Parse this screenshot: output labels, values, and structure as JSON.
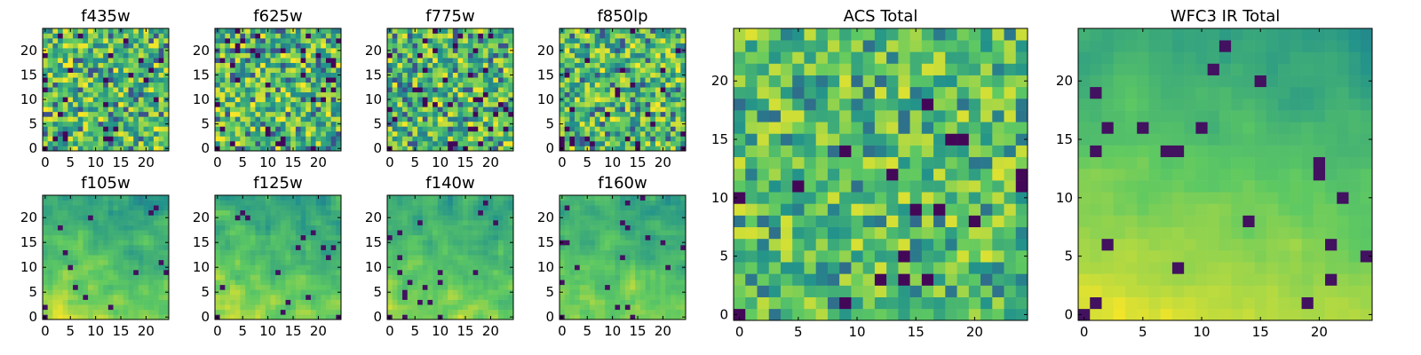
{
  "figure": {
    "colormap": "viridis",
    "colormap_stops": [
      "#440154",
      "#3b528b",
      "#21918c",
      "#5ec962",
      "#fde725"
    ]
  },
  "chart_data": [
    {
      "type": "heatmap",
      "title": "f435w",
      "grid_size": [
        25,
        25
      ],
      "xticks": [
        "0",
        "5",
        "10",
        "15",
        "20"
      ],
      "yticks": [
        "0",
        "5",
        "10",
        "15",
        "20"
      ],
      "xlim": [
        0,
        25
      ],
      "ylim": [
        0,
        25
      ],
      "grid": false,
      "texture": "uniform-noise",
      "seed": 11
    },
    {
      "type": "heatmap",
      "title": "f625w",
      "grid_size": [
        25,
        25
      ],
      "xticks": [
        "0",
        "5",
        "10",
        "15",
        "20"
      ],
      "yticks": [
        "0",
        "5",
        "10",
        "15",
        "20"
      ],
      "xlim": [
        0,
        25
      ],
      "ylim": [
        0,
        25
      ],
      "grid": false,
      "texture": "uniform-noise",
      "seed": 23
    },
    {
      "type": "heatmap",
      "title": "f775w",
      "grid_size": [
        25,
        25
      ],
      "xticks": [
        "0",
        "5",
        "10",
        "15",
        "20"
      ],
      "yticks": [
        "0",
        "5",
        "10",
        "15",
        "20"
      ],
      "xlim": [
        0,
        25
      ],
      "ylim": [
        0,
        25
      ],
      "grid": false,
      "texture": "uniform-noise",
      "seed": 37
    },
    {
      "type": "heatmap",
      "title": "f850lp",
      "grid_size": [
        25,
        25
      ],
      "xticks": [
        "0",
        "5",
        "10",
        "15",
        "20"
      ],
      "yticks": [
        "0",
        "5",
        "10",
        "15",
        "20"
      ],
      "xlim": [
        0,
        25
      ],
      "ylim": [
        0,
        25
      ],
      "grid": false,
      "texture": "uniform-noise",
      "seed": 41
    },
    {
      "type": "heatmap",
      "title": "f105w",
      "grid_size": [
        25,
        25
      ],
      "xticks": [
        "0",
        "5",
        "10",
        "15",
        "20"
      ],
      "yticks": [
        "0",
        "5",
        "10",
        "15",
        "20"
      ],
      "xlim": [
        0,
        25
      ],
      "ylim": [
        0,
        25
      ],
      "grid": false,
      "texture": "smooth-ir",
      "seed": 53
    },
    {
      "type": "heatmap",
      "title": "f125w",
      "grid_size": [
        25,
        25
      ],
      "xticks": [
        "0",
        "5",
        "10",
        "15",
        "20"
      ],
      "yticks": [
        "0",
        "5",
        "10",
        "15",
        "20"
      ],
      "xlim": [
        0,
        25
      ],
      "ylim": [
        0,
        25
      ],
      "grid": false,
      "texture": "smooth-ir",
      "seed": 67
    },
    {
      "type": "heatmap",
      "title": "f140w",
      "grid_size": [
        25,
        25
      ],
      "xticks": [
        "0",
        "5",
        "10",
        "15",
        "20"
      ],
      "yticks": [
        "0",
        "5",
        "10",
        "15",
        "20"
      ],
      "xlim": [
        0,
        25
      ],
      "ylim": [
        0,
        25
      ],
      "grid": false,
      "texture": "smooth-ir",
      "seed": 79
    },
    {
      "type": "heatmap",
      "title": "f160w",
      "grid_size": [
        25,
        25
      ],
      "xticks": [
        "0",
        "5",
        "10",
        "15",
        "20"
      ],
      "yticks": [
        "0",
        "5",
        "10",
        "15",
        "20"
      ],
      "xlim": [
        0,
        25
      ],
      "ylim": [
        0,
        25
      ],
      "grid": false,
      "texture": "smooth-ir",
      "seed": 83
    },
    {
      "type": "heatmap",
      "title": "ACS Total",
      "grid_size": [
        25,
        25
      ],
      "xticks": [
        "0",
        "5",
        "10",
        "15",
        "20"
      ],
      "yticks": [
        "0",
        "5",
        "10",
        "15",
        "20"
      ],
      "xlim": [
        0,
        25
      ],
      "ylim": [
        0,
        25
      ],
      "grid": false,
      "texture": "acs-total",
      "seed": 97
    },
    {
      "type": "heatmap",
      "title": "WFC3 IR Total",
      "grid_size": [
        25,
        25
      ],
      "xticks": [
        "0",
        "5",
        "10",
        "15",
        "20"
      ],
      "yticks": [
        "0",
        "5",
        "10",
        "15",
        "20"
      ],
      "xlim": [
        0,
        25
      ],
      "ylim": [
        0,
        25
      ],
      "grid": false,
      "texture": "ir-total",
      "seed": 101
    }
  ]
}
